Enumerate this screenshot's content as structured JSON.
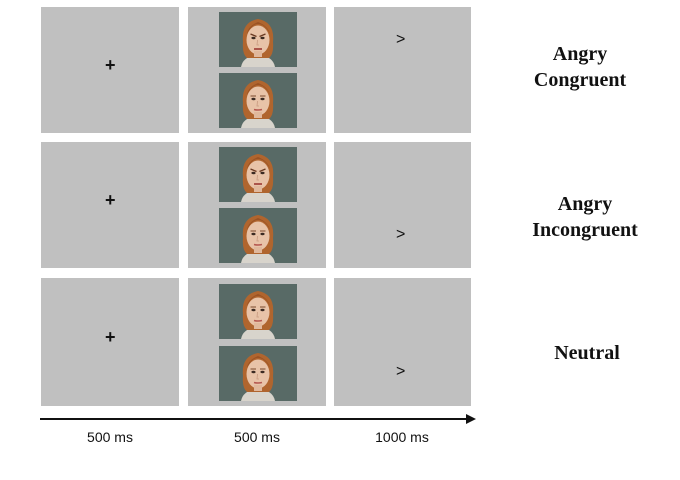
{
  "rows": [
    {
      "fixation_symbol": "+",
      "face_pair": {
        "top_face": "angry-face",
        "bottom_face": "neutral-face"
      },
      "target_symbol": ">",
      "target_location": "top",
      "condition_label": [
        "Angry",
        "Congruent"
      ]
    },
    {
      "fixation_symbol": "+",
      "face_pair": {
        "top_face": "angry-face",
        "bottom_face": "neutral-face"
      },
      "target_symbol": ">",
      "target_location": "bottom",
      "condition_label": [
        "Angry",
        "Incongruent"
      ]
    },
    {
      "fixation_symbol": "+",
      "face_pair": {
        "top_face": "neutral-face",
        "bottom_face": "neutral-face"
      },
      "target_symbol": ">",
      "target_location": "bottom",
      "condition_label": [
        "Neutral"
      ]
    }
  ],
  "timeline": {
    "durations": [
      "500 ms",
      "500 ms",
      "1000 ms"
    ]
  },
  "colors": {
    "panel": "#c0c0c0",
    "face_background": "#586a66",
    "hair": "#b0652e",
    "skin": "#e8c3a8",
    "sweater": "#d8d4cc",
    "text": "#111111"
  }
}
